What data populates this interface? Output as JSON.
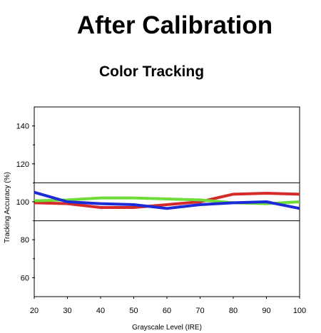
{
  "title": "After Calibration",
  "chart_data": {
    "type": "line",
    "title": "Color Tracking",
    "xlabel": "Grayscale Level (IRE)",
    "ylabel": "Tracking Accuracy (%)",
    "xlim": [
      20,
      100
    ],
    "ylim": [
      50,
      150
    ],
    "x": [
      20,
      30,
      40,
      50,
      60,
      70,
      80,
      90,
      100
    ],
    "xticks": [
      20,
      30,
      40,
      50,
      60,
      70,
      80,
      90,
      100
    ],
    "yticks": [
      60,
      80,
      100,
      120,
      140
    ],
    "reference_lines": [
      90,
      110
    ],
    "grid": false,
    "legend": "none",
    "series": [
      {
        "color": "#d42a2a",
        "values": [
          99.5,
          99,
          97,
          97,
          98.5,
          100,
          104,
          104.5,
          104
        ]
      },
      {
        "color": "#6fdc3a",
        "values": [
          100.5,
          101,
          102,
          102,
          101.5,
          101,
          99.5,
          99,
          100
        ]
      },
      {
        "color": "#1d2ad8",
        "values": [
          105,
          100,
          99,
          98.5,
          96.5,
          98.5,
          99.5,
          100,
          96.5
        ]
      }
    ]
  }
}
